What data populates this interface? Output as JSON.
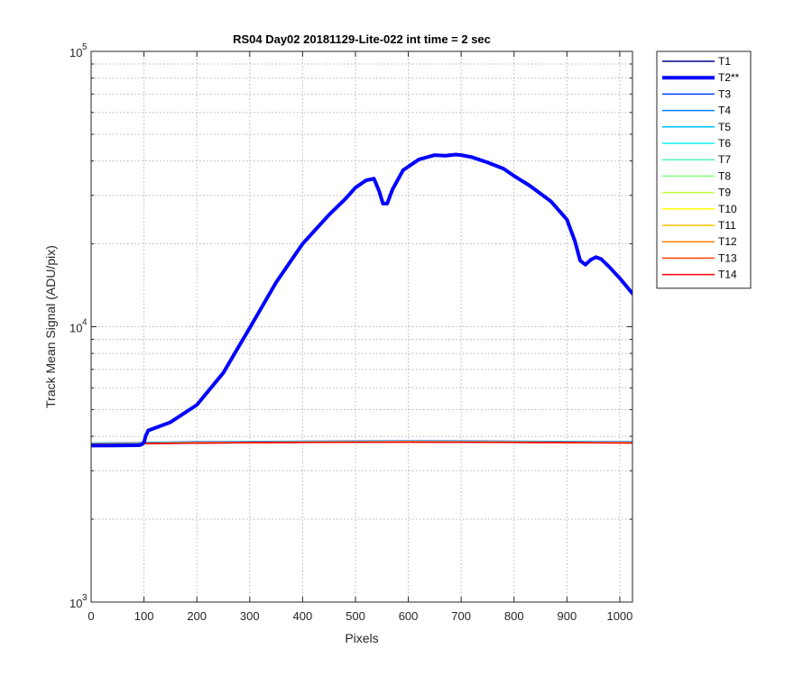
{
  "chart_data": {
    "type": "line",
    "title": "RS04 Day02 20181129-Lite-022 int time = 2 sec",
    "xlabel": "Pixels",
    "ylabel": "Track Mean Signal (ADU/pix)",
    "xlim": [
      0,
      1024
    ],
    "ylim": [
      1000,
      100000
    ],
    "yscale": "log",
    "grid": true,
    "legend_position": "outside-right",
    "x_ticks": [
      0,
      100,
      200,
      300,
      400,
      500,
      600,
      700,
      800,
      900,
      1000
    ],
    "x_tick_labels": [
      "0",
      "100",
      "200",
      "300",
      "400",
      "500",
      "600",
      "700",
      "800",
      "900",
      "1000"
    ],
    "y_ticks": [
      {
        "base": "10",
        "exp": "3",
        "value": 1000
      },
      {
        "base": "10",
        "exp": "4",
        "value": 10000
      },
      {
        "base": "10",
        "exp": "5",
        "value": 100000
      }
    ],
    "series": [
      {
        "name": "T1",
        "color": "#00008f",
        "width": 1.5,
        "x": [
          0,
          90,
          100,
          200,
          400,
          600,
          800,
          1024
        ],
        "y": [
          3720,
          3740,
          3760,
          3780,
          3800,
          3810,
          3800,
          3790
        ]
      },
      {
        "name": "T2**",
        "color": "#0000ff",
        "width": 4,
        "highlight": true,
        "x": [
          0,
          90,
          95,
          100,
          103,
          108,
          150,
          200,
          250,
          300,
          350,
          400,
          450,
          480,
          500,
          520,
          535,
          545,
          552,
          560,
          570,
          590,
          620,
          650,
          670,
          690,
          700,
          720,
          750,
          780,
          800,
          830,
          870,
          900,
          915,
          925,
          935,
          945,
          955,
          965,
          980,
          1000,
          1024
        ],
        "y": [
          3700,
          3710,
          3730,
          3800,
          4000,
          4200,
          4500,
          5200,
          6800,
          9900,
          14500,
          20000,
          25500,
          29000,
          32000,
          34000,
          34500,
          31000,
          28000,
          28000,
          31500,
          37000,
          40500,
          42000,
          41800,
          42200,
          42000,
          41300,
          39500,
          37500,
          35300,
          32500,
          28500,
          24500,
          20500,
          17400,
          16800,
          17500,
          17900,
          17600,
          16500,
          15000,
          13200
        ]
      },
      {
        "name": "T3",
        "color": "#0040ff",
        "width": 1.5,
        "x": [
          0,
          90,
          100,
          200,
          400,
          600,
          800,
          1024
        ],
        "y": [
          3780,
          3790,
          3800,
          3820,
          3840,
          3850,
          3840,
          3820
        ]
      },
      {
        "name": "T4",
        "color": "#0080ff",
        "width": 1.5,
        "x": [
          0,
          90,
          100,
          200,
          400,
          600,
          800,
          1024
        ],
        "y": [
          3770,
          3780,
          3790,
          3810,
          3830,
          3840,
          3830,
          3810
        ]
      },
      {
        "name": "T5",
        "color": "#00bfff",
        "width": 1.5,
        "x": [
          0,
          90,
          100,
          200,
          400,
          600,
          800,
          1024
        ],
        "y": [
          3765,
          3775,
          3785,
          3805,
          3825,
          3835,
          3825,
          3805
        ]
      },
      {
        "name": "T6",
        "color": "#10f0f0",
        "width": 1.5,
        "x": [
          0,
          90,
          100,
          200,
          400,
          600,
          800,
          1024
        ],
        "y": [
          3760,
          3770,
          3780,
          3800,
          3820,
          3830,
          3820,
          3800
        ]
      },
      {
        "name": "T7",
        "color": "#50f0c0",
        "width": 1.5,
        "x": [
          0,
          90,
          100,
          200,
          400,
          600,
          800,
          1024
        ],
        "y": [
          3758,
          3768,
          3778,
          3798,
          3818,
          3828,
          3818,
          3798
        ]
      },
      {
        "name": "T8",
        "color": "#80ff80",
        "width": 1.5,
        "x": [
          0,
          90,
          100,
          200,
          400,
          600,
          800,
          1024
        ],
        "y": [
          3755,
          3765,
          3775,
          3795,
          3815,
          3825,
          3815,
          3795
        ]
      },
      {
        "name": "T9",
        "color": "#c0ff40",
        "width": 1.5,
        "x": [
          0,
          90,
          100,
          200,
          400,
          600,
          800,
          1024
        ],
        "y": [
          3752,
          3762,
          3772,
          3792,
          3812,
          3822,
          3812,
          3792
        ]
      },
      {
        "name": "T10",
        "color": "#ffff00",
        "width": 1.5,
        "x": [
          0,
          90,
          100,
          200,
          400,
          600,
          800,
          1024
        ],
        "y": [
          3750,
          3760,
          3770,
          3790,
          3810,
          3820,
          3810,
          3790
        ]
      },
      {
        "name": "T11",
        "color": "#ffbf00",
        "width": 1.5,
        "x": [
          0,
          90,
          100,
          200,
          400,
          600,
          800,
          1024
        ],
        "y": [
          3748,
          3758,
          3768,
          3788,
          3808,
          3818,
          3808,
          3788
        ]
      },
      {
        "name": "T12",
        "color": "#ff8000",
        "width": 1.5,
        "x": [
          0,
          90,
          100,
          200,
          400,
          600,
          800,
          1024
        ],
        "y": [
          3746,
          3756,
          3766,
          3786,
          3806,
          3816,
          3806,
          3786
        ]
      },
      {
        "name": "T13",
        "color": "#ff4000",
        "width": 1.5,
        "x": [
          0,
          90,
          100,
          200,
          400,
          600,
          800,
          1024
        ],
        "y": [
          3744,
          3754,
          3764,
          3784,
          3804,
          3814,
          3804,
          3784
        ]
      },
      {
        "name": "T14",
        "color": "#ff0000",
        "width": 1.5,
        "x": [
          0,
          90,
          100,
          200,
          400,
          600,
          800,
          1024
        ],
        "y": [
          3742,
          3752,
          3762,
          3782,
          3802,
          3812,
          3802,
          3782
        ]
      }
    ]
  }
}
